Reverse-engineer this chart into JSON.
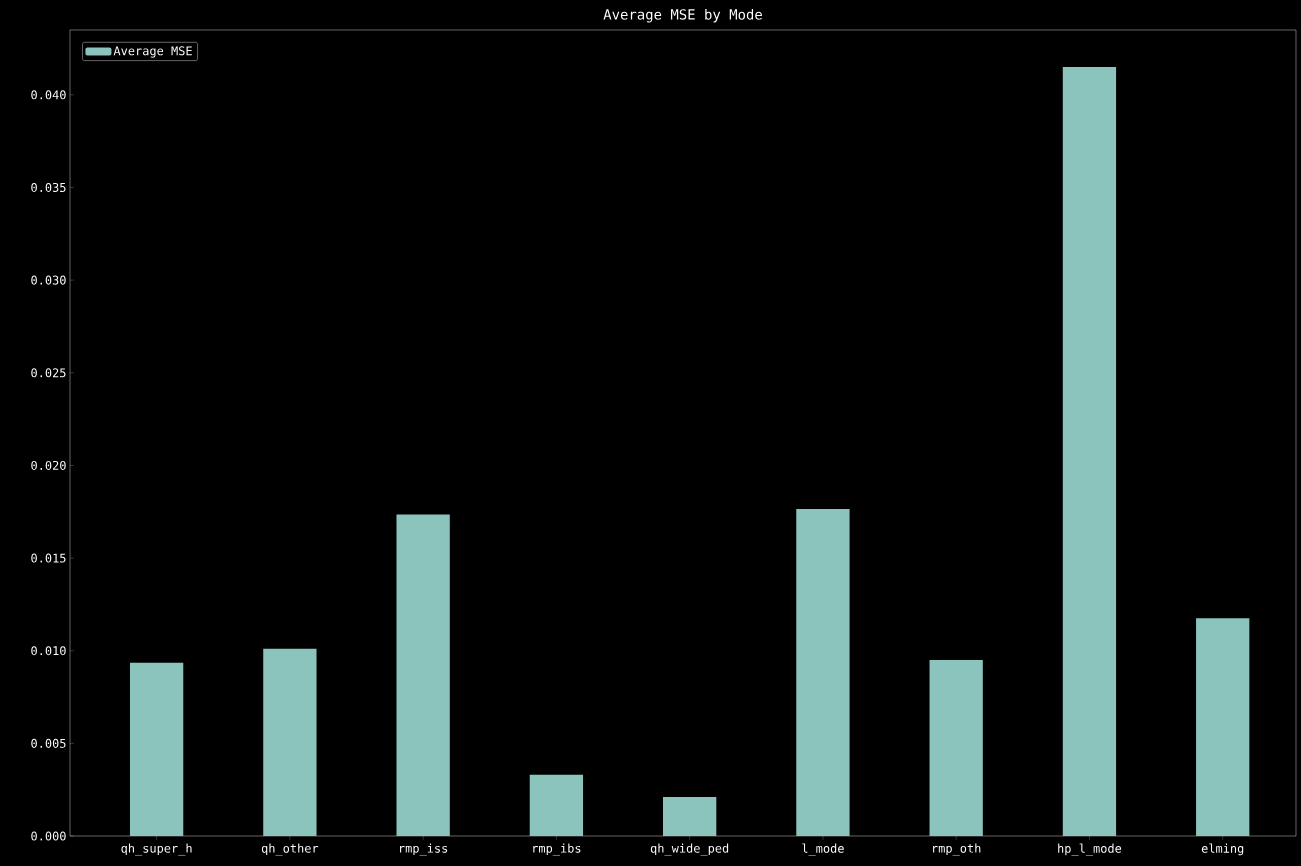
{
  "chart_data": {
    "type": "bar",
    "title": "Average MSE by Mode",
    "categories": [
      "qh_super_h",
      "qh_other",
      "rmp_iss",
      "rmp_ibs",
      "qh_wide_ped",
      "l_mode",
      "rmp_oth",
      "hp_l_mode",
      "elming"
    ],
    "series": [
      {
        "name": "Average MSE",
        "color": "#8ac4bd",
        "values": [
          0.00935,
          0.0101,
          0.01735,
          0.0033,
          0.0021,
          0.01765,
          0.0095,
          0.0415,
          0.01175
        ]
      }
    ],
    "ylim": [
      0,
      0.0435
    ],
    "yticks": [
      {
        "value": 0,
        "label": "0.000"
      },
      {
        "value": 0.005,
        "label": "0.005"
      },
      {
        "value": 0.01,
        "label": "0.010"
      },
      {
        "value": 0.015,
        "label": "0.015"
      },
      {
        "value": 0.02,
        "label": "0.020"
      },
      {
        "value": 0.025,
        "label": "0.025"
      },
      {
        "value": 0.03,
        "label": "0.030"
      },
      {
        "value": 0.035,
        "label": "0.035"
      },
      {
        "value": 0.04,
        "label": "0.040"
      }
    ],
    "legend": "top left",
    "grid": false
  }
}
